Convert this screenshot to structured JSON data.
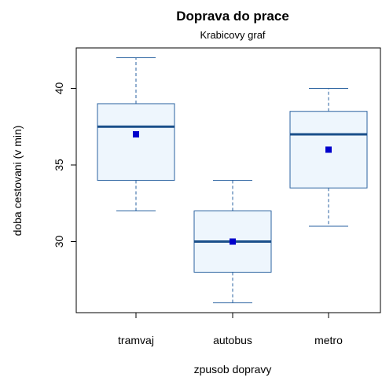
{
  "chart_data": {
    "type": "box",
    "title": "Doprava do prace",
    "subtitle": "Krabicovy graf",
    "x_label": "zpusob dopravy",
    "y_label": "doba cestovani (v min)",
    "categories": [
      "tramvaj",
      "autobus",
      "metro"
    ],
    "whisker_low": [
      32,
      26,
      31
    ],
    "q1": [
      34,
      28,
      33.5
    ],
    "median": [
      37.5,
      30,
      37
    ],
    "q3": [
      39,
      32,
      38.5
    ],
    "whisker_high": [
      42,
      34,
      40
    ],
    "mean": [
      37,
      30,
      36
    ],
    "box_fill": "#eef6fd",
    "box_color": "#2a62a0",
    "median_color": "#1a4f8a",
    "mean_color": "#0000cc",
    "ylim": [
      25.36,
      42.64
    ],
    "yticks": [
      30,
      35,
      40
    ]
  }
}
